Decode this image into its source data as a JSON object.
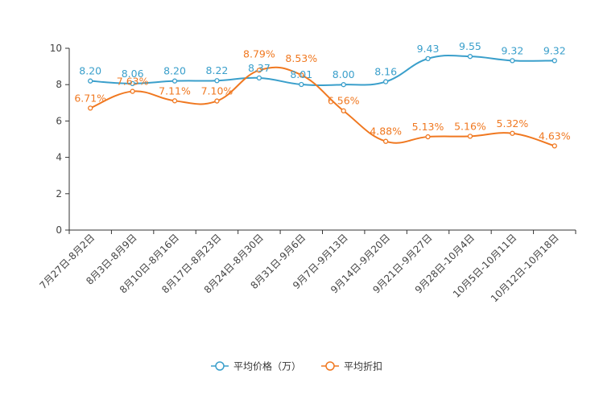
{
  "chart_data": {
    "type": "line",
    "title": "",
    "xlabel": "",
    "ylabel": "",
    "ylim": [
      0,
      10
    ],
    "yticks": [
      0,
      2,
      4,
      6,
      8,
      10
    ],
    "grid": false,
    "legend_position": "bottom-center",
    "categories": [
      "7月27日-8月2日",
      "8月3日-8月9日",
      "8月10日-8月16日",
      "8月17日-8月23日",
      "8月24日-8月30日",
      "8月31日-9月6日",
      "9月7日-9月13日",
      "9月14日-9月20日",
      "9月21日-9月27日",
      "9月28日-10月4日",
      "10月5日-10月11日",
      "10月12日-10月18日"
    ],
    "series": [
      {
        "name": "平均价格（万）",
        "color": "#3a9fcb",
        "values": [
          8.2,
          8.06,
          8.2,
          8.22,
          8.37,
          8.01,
          8.0,
          8.16,
          9.43,
          9.55,
          9.32,
          9.32
        ],
        "labels": [
          "8.20",
          "8.06",
          "8.20",
          "8.22",
          "8.37",
          "8.01",
          "8.00",
          "8.16",
          "9.43",
          "9.55",
          "9.32",
          "9.32"
        ]
      },
      {
        "name": "平均折扣",
        "color": "#f07820",
        "values": [
          6.71,
          7.63,
          7.11,
          7.1,
          8.79,
          8.53,
          6.56,
          4.88,
          5.13,
          5.16,
          5.32,
          4.63
        ],
        "labels": [
          "6.71%",
          "7.63%",
          "7.11%",
          "7.10%",
          "8.79%",
          "8.53%",
          "6.56%",
          "4.88%",
          "5.13%",
          "5.16%",
          "5.32%",
          "4.63%"
        ]
      }
    ]
  }
}
